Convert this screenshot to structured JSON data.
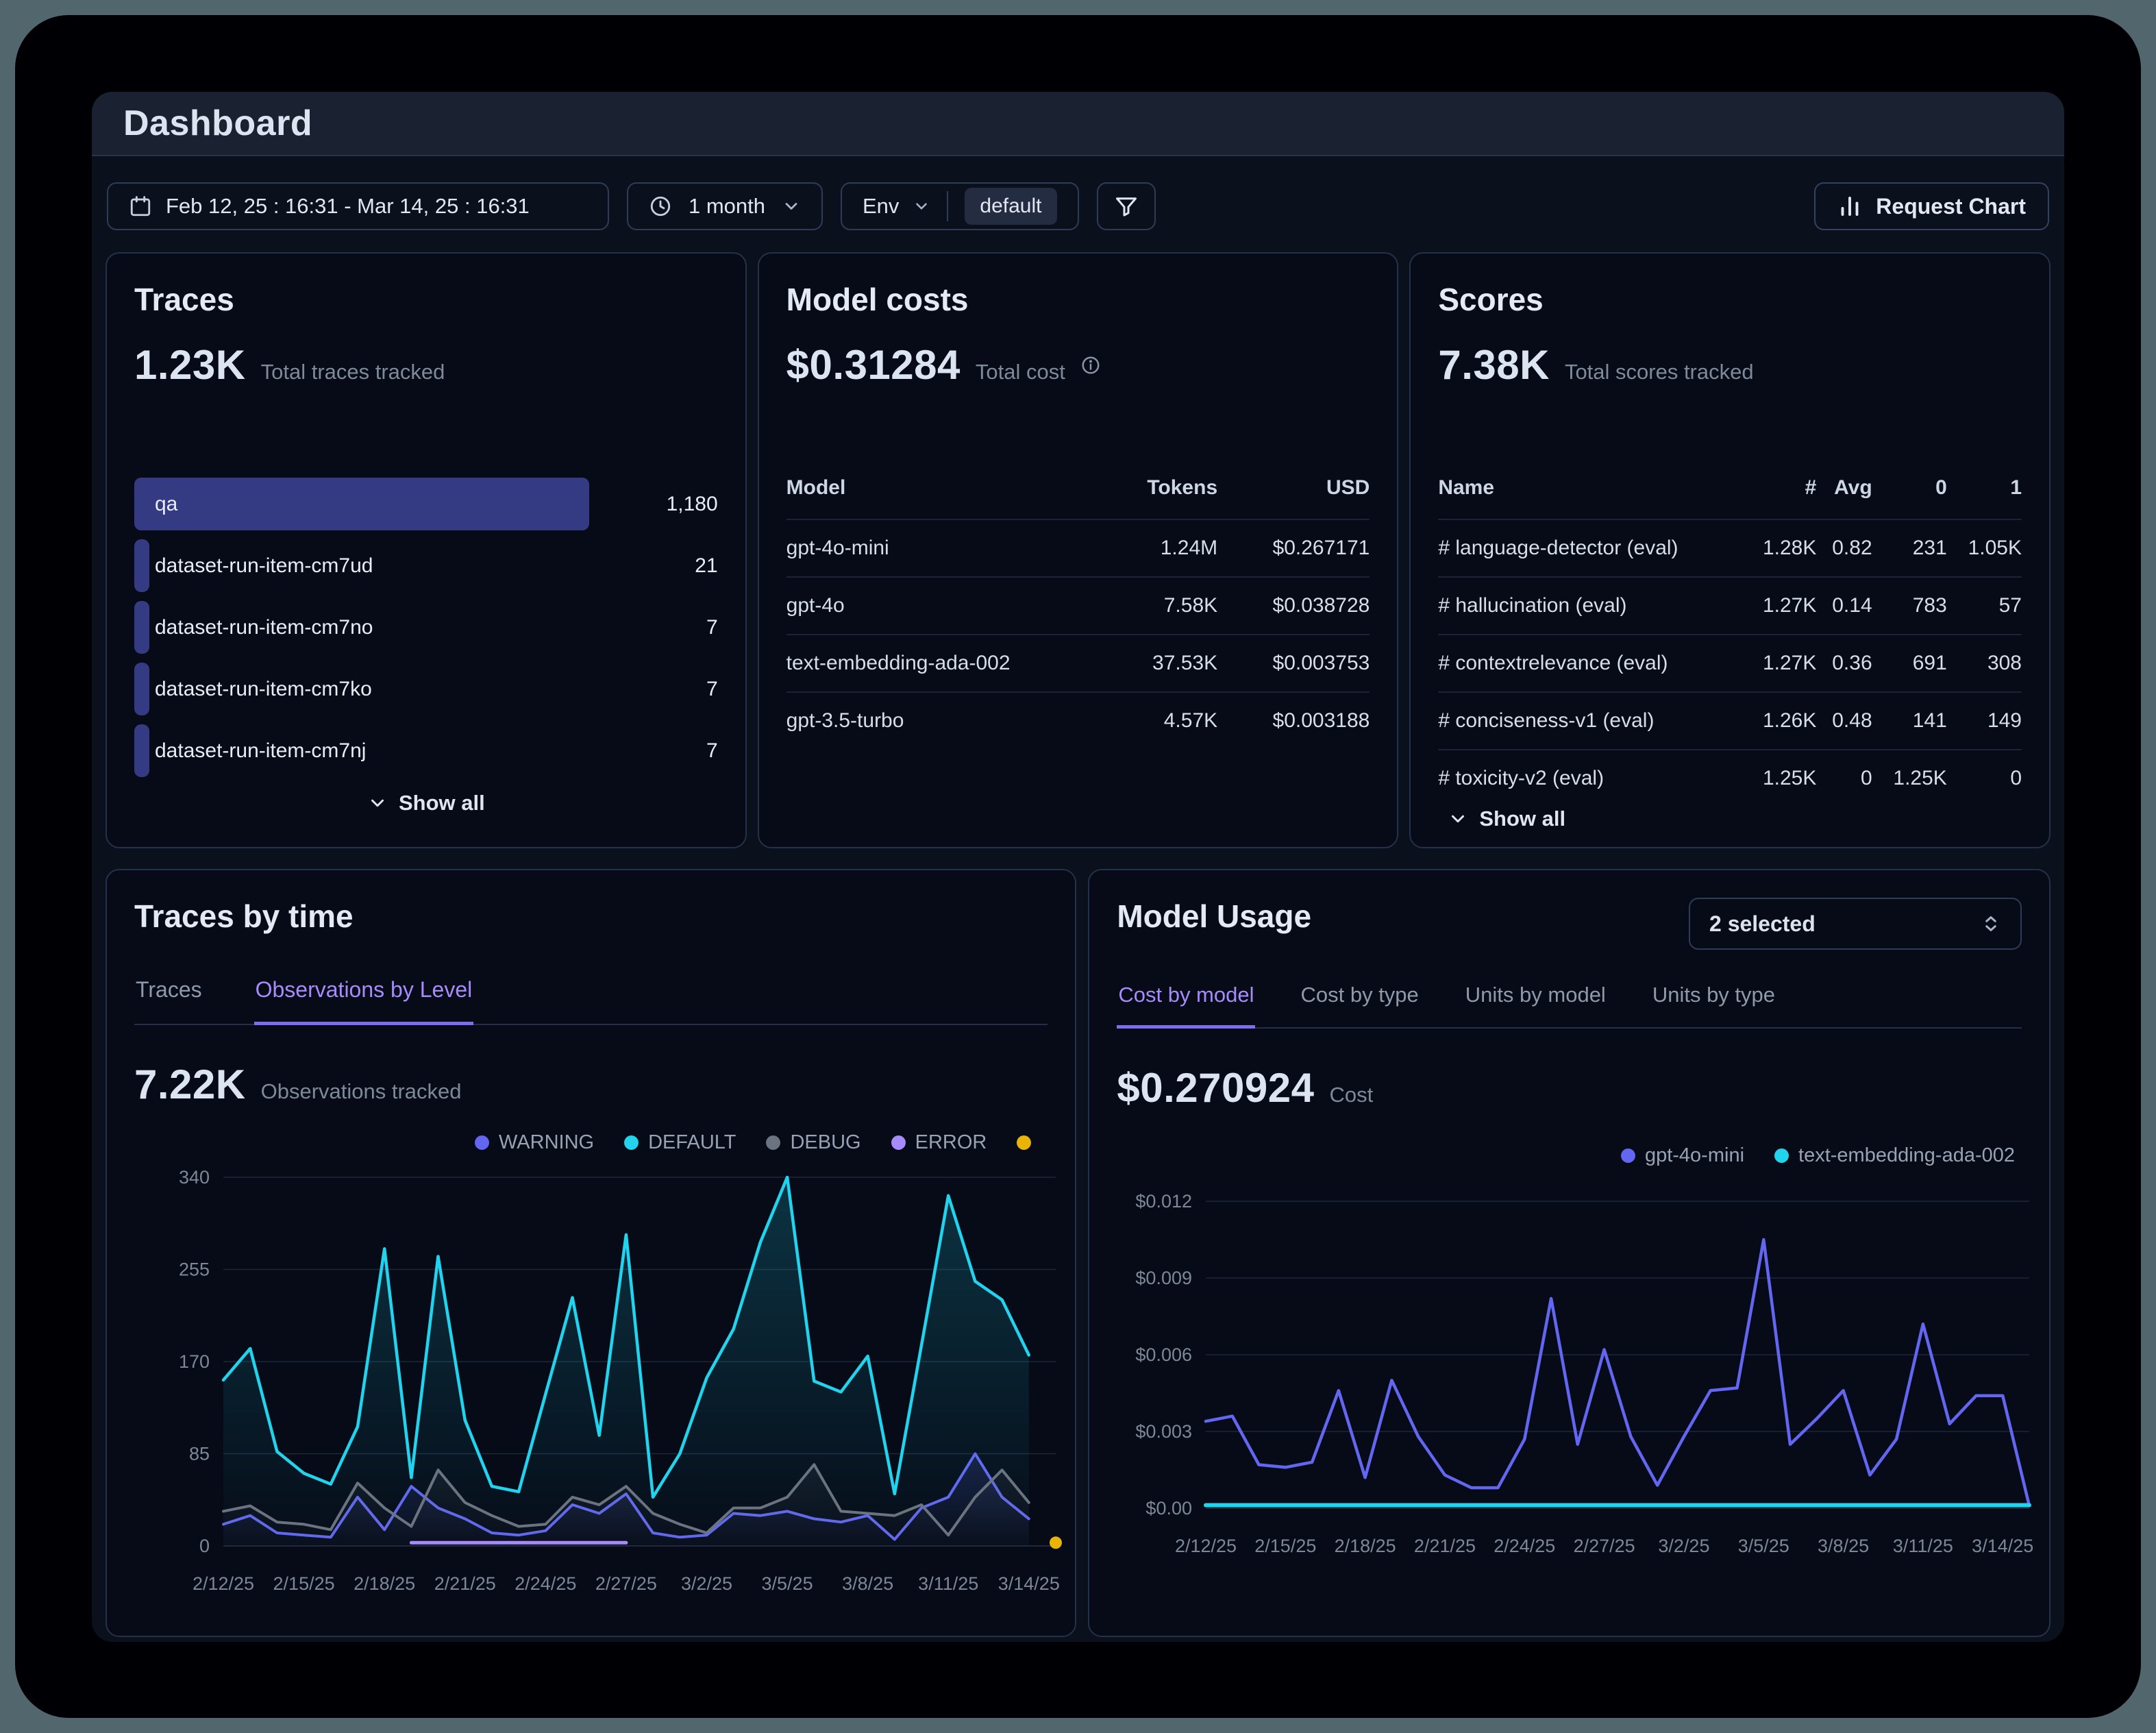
{
  "window": {
    "title": "Dashboard"
  },
  "toolbar": {
    "date_range": "Feb 12, 25 : 16:31 - Mar 14, 25 : 16:31",
    "time_preset": "1 month",
    "env_label": "Env",
    "env_value": "default",
    "request_chart_label": "Request Chart"
  },
  "colors": {
    "accent_purple": "#a78bfa",
    "bar_indigo": "#353b82",
    "warning": "#6366f1",
    "default_level": "#22d3ee",
    "debug": "#6b7280",
    "error": "#a78bfa",
    "extra_yellow": "#eab308"
  },
  "traces_card": {
    "title": "Traces",
    "metric": "1.23K",
    "metric_caption": "Total traces tracked",
    "show_all": "Show all",
    "items": [
      {
        "label": "qa",
        "value": "1,180",
        "bar_pct": 78
      },
      {
        "label": "dataset-run-item-cm7ud",
        "value": "21",
        "bar_pct": 1.7
      },
      {
        "label": "dataset-run-item-cm7no",
        "value": "7",
        "bar_pct": 1.7
      },
      {
        "label": "dataset-run-item-cm7ko",
        "value": "7",
        "bar_pct": 1.7
      },
      {
        "label": "dataset-run-item-cm7nj",
        "value": "7",
        "bar_pct": 1.7
      }
    ]
  },
  "model_costs_card": {
    "title": "Model costs",
    "metric": "$0.31284",
    "metric_caption": "Total cost",
    "columns": [
      "Model",
      "Tokens",
      "USD"
    ],
    "rows": [
      [
        "gpt-4o-mini",
        "1.24M",
        "$0.267171"
      ],
      [
        "gpt-4o",
        "7.58K",
        "$0.038728"
      ],
      [
        "text-embedding-ada-002",
        "37.53K",
        "$0.003753"
      ],
      [
        "gpt-3.5-turbo",
        "4.57K",
        "$0.003188"
      ]
    ]
  },
  "scores_card": {
    "title": "Scores",
    "metric": "7.38K",
    "metric_caption": "Total scores tracked",
    "show_all": "Show all",
    "columns": [
      "Name",
      "#",
      "Avg",
      "0",
      "1"
    ],
    "rows": [
      [
        "# language-detector (eval)",
        "1.28K",
        "0.82",
        "231",
        "1.05K"
      ],
      [
        "# hallucination (eval)",
        "1.27K",
        "0.14",
        "783",
        "57"
      ],
      [
        "# contextrelevance (eval)",
        "1.27K",
        "0.36",
        "691",
        "308"
      ],
      [
        "# conciseness-v1 (eval)",
        "1.26K",
        "0.48",
        "141",
        "149"
      ],
      [
        "# toxicity-v2 (eval)",
        "1.25K",
        "0",
        "1.25K",
        "0"
      ]
    ]
  },
  "traces_by_time_card": {
    "title": "Traces by time",
    "tabs": [
      {
        "label": "Traces",
        "active": false
      },
      {
        "label": "Observations by Level",
        "active": true
      }
    ],
    "metric": "7.22K",
    "metric_caption": "Observations tracked"
  },
  "model_usage_card": {
    "title": "Model Usage",
    "selector": "2 selected",
    "tabs": [
      {
        "label": "Cost by model",
        "active": true
      },
      {
        "label": "Cost by type",
        "active": false
      },
      {
        "label": "Units by model",
        "active": false
      },
      {
        "label": "Units by type",
        "active": false
      }
    ],
    "metric": "$0.270924",
    "metric_caption": "Cost"
  },
  "chart_data": [
    {
      "type": "line",
      "title": "Observations by Level",
      "slots": 32,
      "ylim": [
        0,
        340
      ],
      "yticks": [
        0,
        85,
        170,
        255,
        340
      ],
      "ytick_labels": [
        "0",
        "85",
        "170",
        "255",
        "340"
      ],
      "x_ticks": [
        0,
        3,
        6,
        9,
        12,
        15,
        18,
        21,
        24,
        27,
        30
      ],
      "x_tick_labels": [
        "2/12/25",
        "2/15/25",
        "2/18/25",
        "2/21/25",
        "2/24/25",
        "2/27/25",
        "3/2/25",
        "3/5/25",
        "3/8/25",
        "3/11/25",
        "3/14/25"
      ],
      "legend_position": "top-right",
      "grid": true,
      "series": [
        {
          "name": "WARNING",
          "color": "#6366f1",
          "width": 4,
          "area_opacity": 0.18,
          "values": [
            20,
            28,
            12,
            10,
            8,
            45,
            15,
            55,
            35,
            25,
            12,
            10,
            14,
            38,
            30,
            48,
            12,
            8,
            10,
            30,
            28,
            32,
            25,
            22,
            28,
            6,
            35,
            45,
            85,
            45,
            25,
            null
          ]
        },
        {
          "name": "DEFAULT",
          "color": "#22d3ee",
          "width": 4.5,
          "area_opacity": 0.2,
          "values": [
            153,
            182,
            87,
            67,
            57,
            110,
            274,
            63,
            267,
            116,
            55,
            50,
            140,
            229,
            102,
            287,
            45,
            85,
            155,
            200,
            280,
            340,
            152,
            142,
            175,
            48,
            185,
            323,
            244,
            227,
            176,
            null
          ]
        },
        {
          "name": "DEBUG",
          "color": "#6b7280",
          "width": 4,
          "area_opacity": 0.12,
          "values": [
            32,
            37,
            22,
            20,
            15,
            58,
            35,
            18,
            70,
            40,
            28,
            18,
            20,
            45,
            38,
            55,
            30,
            20,
            12,
            35,
            35,
            45,
            75,
            32,
            30,
            28,
            38,
            10,
            45,
            70,
            40,
            null
          ]
        },
        {
          "name": "ERROR",
          "color": "#a78bfa",
          "width": 5,
          "area_opacity": 0,
          "values": [
            null,
            null,
            null,
            null,
            null,
            null,
            null,
            3,
            3,
            3,
            3,
            3,
            3,
            3,
            3,
            3,
            null,
            null,
            null,
            null,
            null,
            null,
            null,
            null,
            null,
            null,
            null,
            null,
            null,
            null,
            null,
            null
          ]
        },
        {
          "name": "",
          "color": "#eab308",
          "width": 4,
          "area_opacity": 0,
          "values": [
            null,
            null,
            null,
            null,
            null,
            null,
            null,
            null,
            null,
            null,
            null,
            null,
            null,
            null,
            null,
            null,
            null,
            null,
            null,
            null,
            null,
            null,
            null,
            null,
            null,
            null,
            null,
            null,
            null,
            null,
            null,
            3
          ]
        }
      ]
    },
    {
      "type": "line",
      "title": "Cost by model",
      "slots": 32,
      "ylim": [
        0,
        0.012
      ],
      "yticks": [
        0,
        0.003,
        0.006,
        0.009,
        0.012
      ],
      "ytick_labels": [
        "$0.00",
        "$0.003",
        "$0.006",
        "$0.009",
        "$0.012"
      ],
      "x_ticks": [
        0,
        3,
        6,
        9,
        12,
        15,
        18,
        21,
        24,
        27,
        30
      ],
      "x_tick_labels": [
        "2/12/25",
        "2/15/25",
        "2/18/25",
        "2/21/25",
        "2/24/25",
        "2/27/25",
        "3/2/25",
        "3/5/25",
        "3/8/25",
        "3/11/25",
        "3/14/25"
      ],
      "legend_position": "top-right",
      "grid": true,
      "series": [
        {
          "name": "gpt-4o-mini",
          "color": "#6366f1",
          "width": 4.5,
          "area_opacity": 0,
          "values": [
            0.0034,
            0.0036,
            0.0017,
            0.0016,
            0.0018,
            0.0046,
            0.0012,
            0.005,
            0.0028,
            0.0013,
            0.0008,
            0.0008,
            0.0027,
            0.0082,
            0.0025,
            0.0062,
            0.0028,
            0.0009,
            0.0028,
            0.0046,
            0.0047,
            0.0105,
            0.0025,
            0.0035,
            0.0046,
            0.0013,
            0.0027,
            0.0072,
            0.0033,
            0.0044,
            0.0044,
            0.0001
          ]
        },
        {
          "name": "text-embedding-ada-002",
          "color": "#22d3ee",
          "width": 6,
          "area_opacity": 0,
          "values": [
            0.00012,
            0.00012,
            0.00012,
            0.00012,
            0.00012,
            0.00012,
            0.00012,
            0.00012,
            0.00012,
            0.00012,
            0.00012,
            0.00012,
            0.00012,
            0.00012,
            0.00012,
            0.00012,
            0.00012,
            0.00012,
            0.00012,
            0.00012,
            0.00012,
            0.00012,
            0.00012,
            0.00012,
            0.00012,
            0.00012,
            0.00012,
            0.00012,
            0.00012,
            0.00012,
            0.00012,
            0.00012
          ]
        }
      ]
    }
  ]
}
